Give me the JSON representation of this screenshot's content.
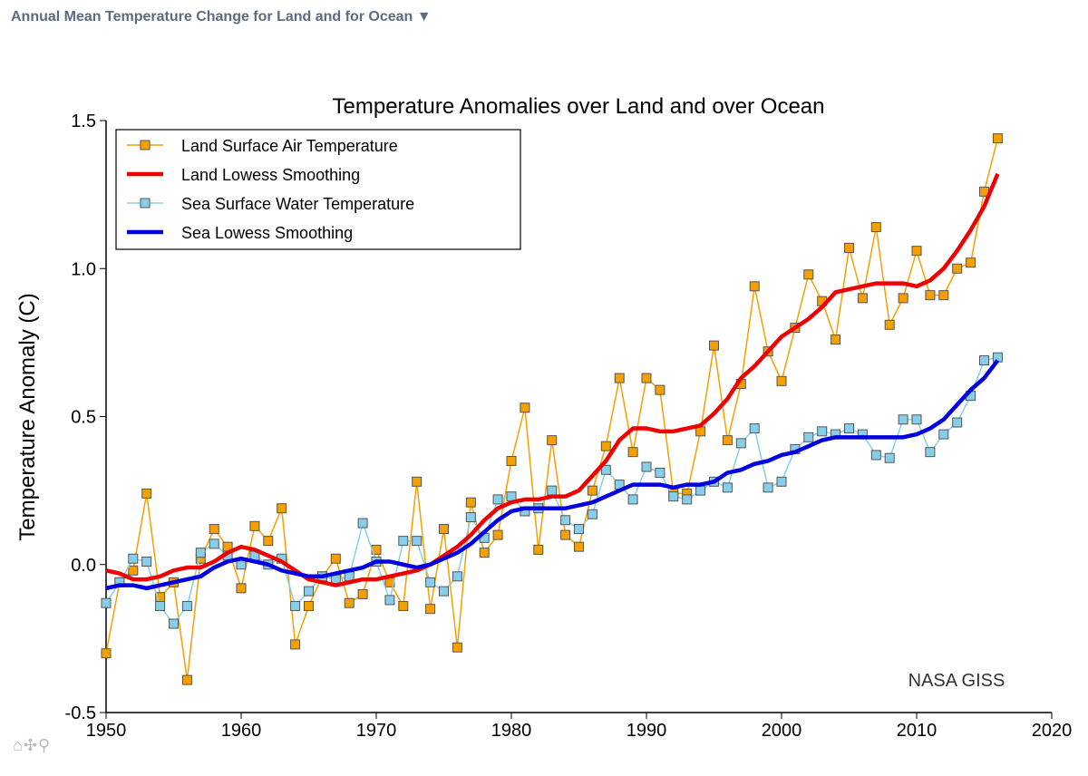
{
  "header": {
    "title": "Annual Mean Temperature Change for Land and for Ocean",
    "dropdown_icon": "▼"
  },
  "toolbar": {
    "home": "⌂",
    "pan": "✣",
    "zoom": "⚲"
  },
  "chart_data": {
    "type": "line",
    "title": "Temperature Anomalies over Land and over Ocean",
    "xlabel": "",
    "ylabel": "Temperature Anomaly (C)",
    "xlim": [
      1950,
      2020
    ],
    "ylim": [
      -0.5,
      1.5
    ],
    "xticks": [
      1950,
      1960,
      1970,
      1980,
      1990,
      2000,
      2010,
      2020
    ],
    "yticks": [
      -0.5,
      0.0,
      0.5,
      1.0,
      1.5
    ],
    "ytick_labels": [
      "-0.5",
      "0.0",
      "0.5",
      "1.0",
      "1.5"
    ],
    "legend_position": "top-left",
    "annotation": "NASA GISS",
    "x_start": 1950,
    "series": [
      {
        "name": "Land Surface Air Temperature",
        "color": "#f5a000",
        "marker": "square",
        "marker_fill": "#f5a000",
        "line_width": "thin",
        "values": [
          -0.3,
          -0.06,
          -0.02,
          0.24,
          -0.11,
          -0.06,
          -0.39,
          0.02,
          0.12,
          0.06,
          -0.08,
          0.13,
          0.08,
          0.19,
          -0.27,
          -0.14,
          -0.04,
          0.02,
          -0.13,
          -0.1,
          0.05,
          -0.06,
          -0.14,
          0.28,
          -0.15,
          0.12,
          -0.28,
          0.21,
          0.04,
          0.1,
          0.35,
          0.53,
          0.05,
          0.42,
          0.1,
          0.06,
          0.25,
          0.4,
          0.63,
          0.38,
          0.63,
          0.59,
          0.24,
          0.24,
          0.45,
          0.74,
          0.42,
          0.61,
          0.94,
          0.72,
          0.62,
          0.8,
          0.98,
          0.89,
          0.76,
          1.07,
          0.9,
          1.14,
          0.81,
          0.9,
          1.06,
          0.91,
          0.91,
          1.0,
          1.02,
          1.26,
          1.44
        ]
      },
      {
        "name": "Land Lowess Smoothing",
        "color": "#ee0000",
        "marker": "none",
        "line_width": "thick",
        "values": [
          -0.02,
          -0.03,
          -0.05,
          -0.05,
          -0.04,
          -0.02,
          -0.01,
          -0.01,
          0.01,
          0.04,
          0.06,
          0.05,
          0.03,
          0.01,
          -0.02,
          -0.05,
          -0.06,
          -0.07,
          -0.06,
          -0.05,
          -0.05,
          -0.04,
          -0.03,
          -0.02,
          0.0,
          0.03,
          0.06,
          0.1,
          0.15,
          0.19,
          0.21,
          0.22,
          0.22,
          0.23,
          0.23,
          0.25,
          0.3,
          0.35,
          0.42,
          0.46,
          0.46,
          0.45,
          0.45,
          0.46,
          0.47,
          0.51,
          0.56,
          0.63,
          0.67,
          0.72,
          0.77,
          0.8,
          0.83,
          0.87,
          0.92,
          0.93,
          0.94,
          0.95,
          0.95,
          0.95,
          0.94,
          0.96,
          1.0,
          1.06,
          1.13,
          1.21,
          1.32
        ]
      },
      {
        "name": "Sea Surface Water Temperature",
        "color": "#87ceeb",
        "marker": "square",
        "marker_fill": "#87ceeb",
        "line_width": "thin",
        "values": [
          -0.13,
          -0.06,
          0.02,
          0.01,
          -0.14,
          -0.2,
          -0.14,
          0.04,
          0.07,
          0.03,
          0.0,
          0.03,
          0.0,
          0.02,
          -0.14,
          -0.09,
          -0.04,
          -0.05,
          -0.04,
          0.14,
          0.01,
          -0.12,
          0.08,
          0.08,
          -0.06,
          -0.09,
          -0.04,
          0.16,
          0.09,
          0.22,
          0.23,
          0.18,
          0.19,
          0.25,
          0.15,
          0.12,
          0.17,
          0.32,
          0.27,
          0.22,
          0.33,
          0.31,
          0.23,
          0.22,
          0.25,
          0.28,
          0.26,
          0.41,
          0.46,
          0.26,
          0.28,
          0.39,
          0.43,
          0.45,
          0.44,
          0.46,
          0.44,
          0.37,
          0.36,
          0.49,
          0.49,
          0.38,
          0.44,
          0.48,
          0.57,
          0.69,
          0.7
        ]
      },
      {
        "name": "Sea Lowess Smoothing",
        "color": "#0000e0",
        "marker": "none",
        "line_width": "thick",
        "values": [
          -0.08,
          -0.07,
          -0.07,
          -0.08,
          -0.07,
          -0.06,
          -0.05,
          -0.04,
          -0.01,
          0.01,
          0.02,
          0.01,
          0.0,
          -0.02,
          -0.03,
          -0.04,
          -0.04,
          -0.03,
          -0.02,
          -0.01,
          0.01,
          0.01,
          0.0,
          -0.01,
          0.0,
          0.02,
          0.04,
          0.07,
          0.11,
          0.15,
          0.18,
          0.19,
          0.19,
          0.19,
          0.19,
          0.2,
          0.21,
          0.23,
          0.25,
          0.27,
          0.27,
          0.27,
          0.26,
          0.27,
          0.27,
          0.28,
          0.31,
          0.32,
          0.34,
          0.35,
          0.37,
          0.38,
          0.4,
          0.42,
          0.43,
          0.43,
          0.43,
          0.43,
          0.43,
          0.43,
          0.44,
          0.46,
          0.49,
          0.54,
          0.59,
          0.63,
          0.69
        ]
      }
    ]
  }
}
